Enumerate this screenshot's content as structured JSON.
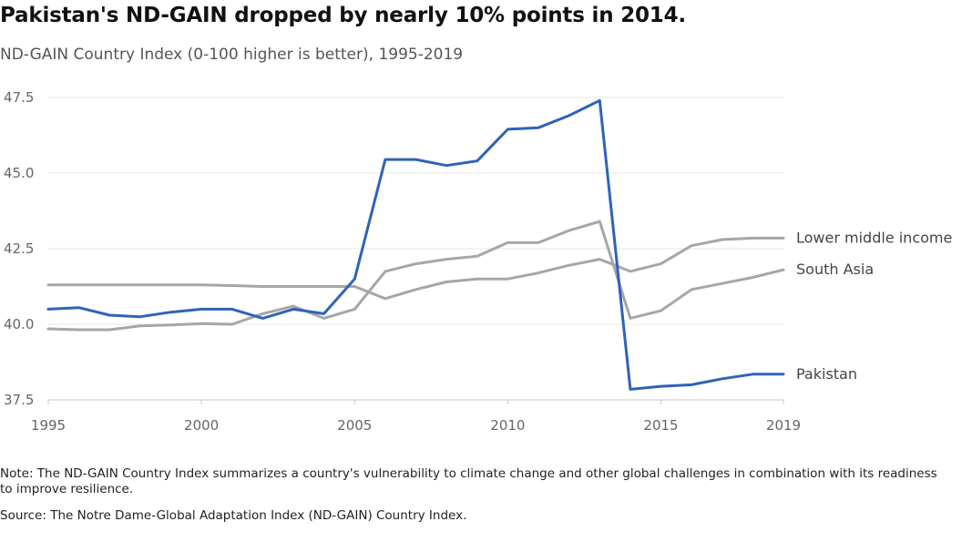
{
  "title": "Pakistan's ND-GAIN dropped by nearly 10% points in 2014.",
  "subtitle": "ND-GAIN Country Index (0-100 higher is better), 1995-2019",
  "note": "Note: The ND-GAIN Country Index summarizes a country's vulnerability to climate change and other global challenges in combination with its readiness to improve resilience.",
  "source": "Source: The Notre Dame-Global Adaptation Index (ND-GAIN) Country Index.",
  "chart_data": {
    "type": "line",
    "x": [
      1995,
      1996,
      1997,
      1998,
      1999,
      2000,
      2001,
      2002,
      2003,
      2004,
      2005,
      2006,
      2007,
      2008,
      2009,
      2010,
      2011,
      2012,
      2013,
      2014,
      2015,
      2016,
      2017,
      2018,
      2019
    ],
    "xlim": [
      1995,
      2019
    ],
    "ylim": [
      37.5,
      47.5
    ],
    "x_ticks": [
      1995,
      2000,
      2005,
      2010,
      2015,
      2019
    ],
    "y_ticks": [
      "37.5",
      "40.0",
      "42.5",
      "45.0",
      "47.5"
    ],
    "grid": "horizontal",
    "series": [
      {
        "name": "Pakistan",
        "color": "#2f63b9",
        "values": [
          40.5,
          40.55,
          40.3,
          40.25,
          40.4,
          40.5,
          40.5,
          40.2,
          40.5,
          40.35,
          41.5,
          45.45,
          45.45,
          45.25,
          45.4,
          46.45,
          46.5,
          46.9,
          47.4,
          37.85,
          37.95,
          38.0,
          38.2,
          38.35,
          38.35
        ]
      },
      {
        "name": "South Asia",
        "color": "#a6a6a6",
        "values": [
          39.85,
          39.82,
          39.82,
          39.95,
          39.98,
          40.02,
          40.0,
          40.35,
          40.6,
          40.2,
          40.5,
          41.75,
          42.0,
          42.15,
          42.25,
          42.7,
          42.7,
          43.1,
          43.4,
          40.2,
          40.45,
          41.15,
          41.35,
          41.55,
          41.8
        ]
      },
      {
        "name": "Lower middle income",
        "color": "#a6a6a6",
        "values": [
          41.3,
          41.3,
          41.3,
          41.3,
          41.3,
          41.3,
          41.28,
          41.25,
          41.25,
          41.25,
          41.25,
          40.85,
          41.15,
          41.4,
          41.5,
          41.5,
          41.7,
          41.95,
          42.15,
          41.75,
          42.0,
          42.6,
          42.8,
          42.85,
          42.85
        ]
      }
    ]
  }
}
